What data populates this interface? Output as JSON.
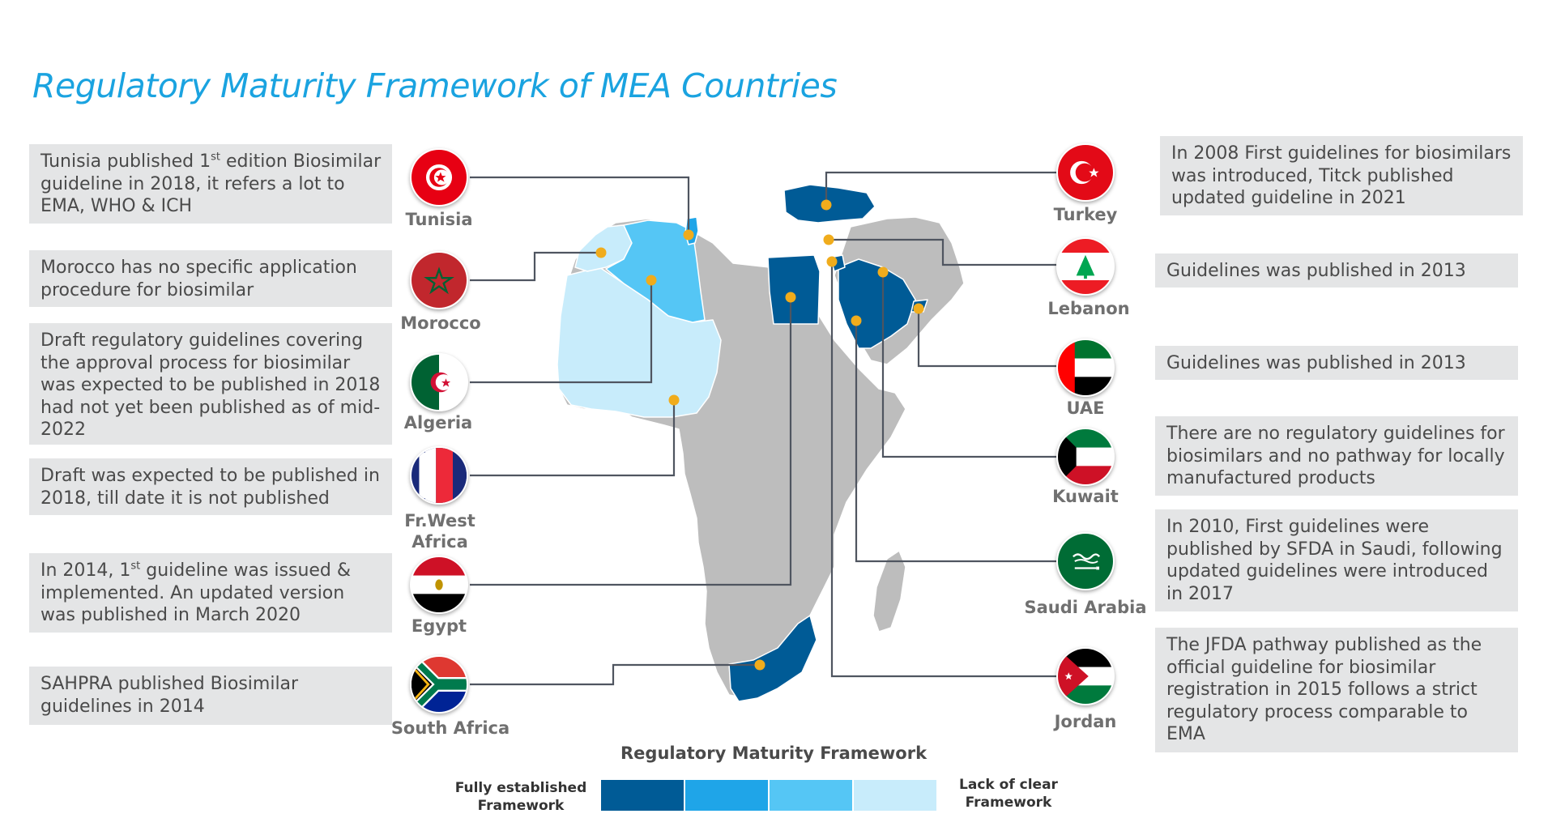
{
  "title": "Regulatory Maturity Framework of MEA Countries",
  "colors": {
    "accent": "#1aa3e0",
    "fully_established": "#005b96",
    "level2": "#1fa5e8",
    "level3": "#55c6f5",
    "lack_of_clear": "#c8ecfb",
    "no_data": "#bdbdbd",
    "marker": "#f0ac1c",
    "connector": "#4f5560"
  },
  "countries": {
    "tunisia": {
      "name": "Tunisia",
      "text_pre": "Tunisia published 1",
      "sup": "st",
      "text_post": " edition Biosimilar guideline in 2018, it refers a lot to EMA, WHO & ICH"
    },
    "morocco": {
      "name": "Morocco",
      "text": "Morocco has no specific application procedure for biosimilar"
    },
    "algeria": {
      "name": "Algeria",
      "text": "Draft regulatory guidelines covering the approval process for biosimilar was expected to be published in 2018 had not yet been published as of mid-2022"
    },
    "frwest": {
      "name_line1": "Fr.West",
      "name_line2": "Africa",
      "text": "Draft was expected to be published in 2018, till date it is not published"
    },
    "egypt": {
      "name": "Egypt",
      "text_pre": "In 2014, 1",
      "sup": "st",
      "text_post": " guideline was issued & implemented. An updated version was published in March 2020"
    },
    "southafrica": {
      "name": "South Africa",
      "text": "SAHPRA published Biosimilar guidelines in 2014"
    },
    "turkey": {
      "name": "Turkey",
      "text": "In 2008 First guidelines for biosimilars was introduced, Titck published updated guideline in 2021"
    },
    "lebanon": {
      "name": "Lebanon",
      "text": "Guidelines was published in 2013"
    },
    "uae": {
      "name": "UAE",
      "text": "Guidelines was published in 2013"
    },
    "kuwait": {
      "name": "Kuwait",
      "text": "There are no regulatory guidelines for biosimilars and no pathway for locally manufactured products"
    },
    "saudi": {
      "name": "Saudi Arabia",
      "text": "In 2010, First guidelines were published by SFDA in Saudi, following updated guidelines were introduced in 2017"
    },
    "jordan": {
      "name": "Jordan",
      "text": "The JFDA pathway published as the official guideline for biosimilar registration in 2015 follows a strict regulatory process comparable to EMA"
    }
  },
  "legend": {
    "title": "Regulatory Maturity Framework",
    "left_label_line1": "Fully established",
    "left_label_line2": "Framework",
    "right_label_line1": "Lack of clear",
    "right_label_line2": "Framework",
    "colors": [
      "#005b96",
      "#1fa5e8",
      "#55c6f5",
      "#c8ecfb"
    ]
  }
}
